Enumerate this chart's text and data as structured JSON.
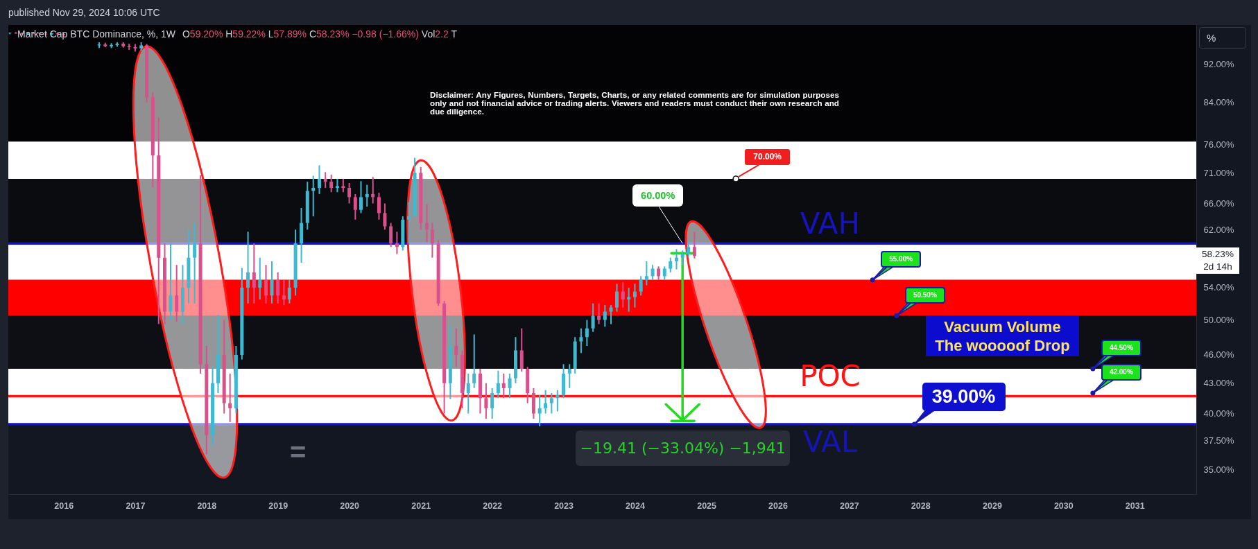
{
  "chart_data": {
    "type": "candlestick",
    "title": "Market Cap BTC Dominance, %, 1W",
    "subtitle": "O59.20% H59.22% L57.89% C58.23% −0.98 (−1.66%) Vol2.2 T",
    "x": [
      "2015-04",
      "2015-05",
      "2015-06",
      "2015-07",
      "2015-08",
      "2015-09",
      "2015-10",
      "2015-11",
      "2015-12",
      "2016-01",
      "2016-07",
      "2016-08",
      "2016-09",
      "2016-10",
      "2016-11",
      "2016-12",
      "2017-01",
      "2017-02",
      "2017-03",
      "2017-04",
      "2017-05",
      "2017-06",
      "2017-07",
      "2017-08",
      "2017-09",
      "2017-10",
      "2017-11",
      "2017-12",
      "2018-01",
      "2018-02",
      "2018-03",
      "2018-04",
      "2018-05",
      "2018-06",
      "2018-07",
      "2018-08",
      "2018-09",
      "2018-10",
      "2018-11",
      "2018-12",
      "2019-01",
      "2019-02",
      "2019-03",
      "2019-04",
      "2019-05",
      "2019-06",
      "2019-07",
      "2019-08",
      "2019-09",
      "2019-10",
      "2019-11",
      "2019-12",
      "2020-01",
      "2020-02",
      "2020-03",
      "2020-04",
      "2020-05",
      "2020-06",
      "2020-07",
      "2020-08",
      "2020-09",
      "2020-10",
      "2020-11",
      "2020-12",
      "2021-01",
      "2021-02",
      "2021-03",
      "2021-04",
      "2021-05",
      "2021-06",
      "2021-07",
      "2021-08",
      "2021-09",
      "2021-10",
      "2021-11",
      "2021-12",
      "2022-01",
      "2022-02",
      "2022-03",
      "2022-04",
      "2022-05",
      "2022-06",
      "2022-07",
      "2022-08",
      "2022-09",
      "2022-10",
      "2022-11",
      "2022-12",
      "2023-01",
      "2023-02",
      "2023-03",
      "2023-04",
      "2023-05",
      "2023-06",
      "2023-07",
      "2023-08",
      "2023-09",
      "2023-10",
      "2023-11",
      "2023-12",
      "2024-01",
      "2024-02",
      "2024-03",
      "2024-04",
      "2024-05",
      "2024-06",
      "2024-07",
      "2024-08",
      "2024-09",
      "2024-10",
      "2024-11"
    ],
    "ohlc": [
      [
        99,
        99.2,
        98.8,
        99.1
      ],
      [
        99.1,
        99.3,
        98.9,
        99
      ],
      [
        99,
        99.2,
        98.7,
        98.9
      ],
      [
        98.9,
        99.2,
        98.7,
        99.1
      ],
      [
        99.1,
        99.3,
        98.8,
        99
      ],
      [
        99,
        99.2,
        98.8,
        98.9
      ],
      [
        98.9,
        99.1,
        98.6,
        98.8
      ],
      [
        98.8,
        99.1,
        98.6,
        99
      ],
      [
        99,
        99.2,
        98.7,
        98.8
      ],
      [
        98.8,
        99,
        98.5,
        98.6
      ],
      [
        96.2,
        96.9,
        95.6,
        96.4
      ],
      [
        96.4,
        96.8,
        95.8,
        96
      ],
      [
        96,
        96.7,
        95.6,
        96.3
      ],
      [
        96.3,
        96.9,
        95.9,
        96.6
      ],
      [
        96.6,
        96.9,
        95.7,
        96
      ],
      [
        96,
        96.6,
        95.2,
        95.8
      ],
      [
        95.8,
        96.5,
        94.8,
        95.5
      ],
      [
        95.5,
        96.9,
        95,
        96.2
      ],
      [
        96.2,
        96.5,
        84,
        85
      ],
      [
        85,
        86,
        68.6,
        74
      ],
      [
        74,
        81,
        49.5,
        58
      ],
      [
        58,
        60,
        49.5,
        51
      ],
      [
        51,
        60,
        50,
        53
      ],
      [
        53,
        57,
        49.8,
        51
      ],
      [
        51,
        57,
        49.5,
        54
      ],
      [
        54,
        62,
        52,
        58
      ],
      [
        58,
        63,
        52,
        60
      ],
      [
        60,
        70.6,
        44,
        45
      ],
      [
        45,
        47,
        36.3,
        38
      ],
      [
        38,
        44.7,
        37,
        43
      ],
      [
        43,
        50.6,
        42,
        46
      ],
      [
        46,
        50,
        40,
        41
      ],
      [
        41,
        44,
        39.2,
        40.5
      ],
      [
        40.5,
        47,
        40,
        46
      ],
      [
        46,
        56.6,
        45.5,
        54
      ],
      [
        54,
        61.7,
        52,
        56
      ],
      [
        56,
        60,
        52,
        54
      ],
      [
        54,
        58,
        52.5,
        55
      ],
      [
        55,
        57,
        52,
        53
      ],
      [
        53,
        57.5,
        52,
        55
      ],
      [
        55,
        56,
        52,
        53
      ],
      [
        53,
        55,
        51.8,
        52.5
      ],
      [
        52.5,
        55,
        52,
        54
      ],
      [
        54,
        62,
        53,
        60
      ],
      [
        60,
        65.3,
        57.3,
        63
      ],
      [
        63,
        69.5,
        62,
        68
      ],
      [
        68,
        70.5,
        64,
        68.5
      ],
      [
        68.5,
        72.3,
        67.5,
        70
      ],
      [
        70,
        71.1,
        68.5,
        69.5
      ],
      [
        69.5,
        70.7,
        67.8,
        68.5
      ],
      [
        68.5,
        70,
        67.8,
        68.8
      ],
      [
        68.8,
        70,
        67.8,
        68.5
      ],
      [
        68.5,
        69.3,
        66,
        67
      ],
      [
        67,
        67.5,
        63.5,
        65
      ],
      [
        65,
        69.6,
        64.5,
        67
      ],
      [
        67,
        69,
        65.5,
        67.5
      ],
      [
        67.5,
        70.3,
        66,
        67
      ],
      [
        67,
        67.7,
        63.5,
        64.5
      ],
      [
        64.5,
        66,
        62,
        62.5
      ],
      [
        62.5,
        63,
        59.5,
        60
      ],
      [
        60,
        61.7,
        58.5,
        59.5
      ],
      [
        59.5,
        64,
        59,
        63.5
      ],
      [
        63.5,
        66.2,
        60,
        64
      ],
      [
        64,
        73.6,
        64,
        71
      ],
      [
        71,
        72,
        62,
        63
      ],
      [
        63,
        65.9,
        60.2,
        62
      ],
      [
        62,
        63,
        58,
        60
      ],
      [
        60,
        60.5,
        51.7,
        52
      ],
      [
        52,
        52.3,
        40,
        43
      ],
      [
        43,
        49.3,
        41.4,
        47
      ],
      [
        47,
        49,
        44.7,
        46
      ],
      [
        46,
        46.5,
        40.5,
        42
      ],
      [
        42,
        44,
        40,
        43
      ],
      [
        43,
        48.3,
        42.5,
        44
      ],
      [
        44,
        44.5,
        40,
        41.5
      ],
      [
        41.5,
        43,
        39.5,
        40.5
      ],
      [
        40.5,
        42.5,
        39.5,
        42
      ],
      [
        42,
        44.3,
        41.5,
        43
      ],
      [
        43,
        44,
        41.5,
        42.5
      ],
      [
        42.5,
        44,
        41.5,
        43.5
      ],
      [
        43.5,
        48,
        43,
        46.5
      ],
      [
        46.5,
        49,
        44.2,
        44.5
      ],
      [
        44.5,
        44.7,
        41,
        42
      ],
      [
        42,
        42.5,
        39.5,
        40
      ],
      [
        40,
        41.8,
        38.8,
        40.5
      ],
      [
        40.5,
        42.3,
        40,
        41
      ],
      [
        41,
        42,
        40,
        41.5
      ],
      [
        41.5,
        42.3,
        40.2,
        41.8
      ],
      [
        41.8,
        45,
        41.5,
        44
      ],
      [
        44,
        45,
        42.5,
        44.5
      ],
      [
        44.5,
        48,
        44,
        47.5
      ],
      [
        47.5,
        49,
        46.2,
        48
      ],
      [
        48,
        50,
        47,
        49
      ],
      [
        49,
        52,
        48.6,
        50.5
      ],
      [
        50.5,
        52,
        49.5,
        50
      ],
      [
        50,
        51.8,
        49.2,
        51
      ],
      [
        51,
        51.8,
        49.5,
        51.5
      ],
      [
        51.5,
        54.5,
        51,
        53.5
      ],
      [
        53.5,
        54.7,
        51.5,
        52.5
      ],
      [
        52.5,
        54,
        51,
        52.8
      ],
      [
        52.8,
        54.5,
        51.5,
        53.5
      ],
      [
        53.5,
        55.5,
        53,
        55
      ],
      [
        55,
        57.5,
        54.3,
        55.5
      ],
      [
        55.5,
        57,
        55,
        56.5
      ],
      [
        56.5,
        56.8,
        55,
        55.5
      ],
      [
        55.5,
        56.8,
        55,
        56.5
      ],
      [
        56.5,
        58,
        56,
        57.5
      ],
      [
        57.5,
        59.2,
        56.4,
        58
      ],
      [
        58,
        59,
        57,
        58.5
      ],
      [
        58.5,
        60.5,
        58,
        59.5
      ],
      [
        59.5,
        61.7,
        57.89,
        58.23
      ]
    ],
    "xlim": [
      "2015-03-24",
      "2031-11-12"
    ],
    "xticks": [
      "2016",
      "2017",
      "2018",
      "2019",
      "2020",
      "2021",
      "2022",
      "2023",
      "2024",
      "2025",
      "2026",
      "2027",
      "2028",
      "2029",
      "2030",
      "2031"
    ],
    "ylim": [
      33,
      101
    ],
    "yticks": [
      {
        "value": 35,
        "label": "35.00%"
      },
      {
        "value": 37.5,
        "label": "37.50%"
      },
      {
        "value": 40,
        "label": "40.00%"
      },
      {
        "value": 43,
        "label": "43.00%"
      },
      {
        "value": 46,
        "label": "46.00%"
      },
      {
        "value": 50,
        "label": "50.00%"
      },
      {
        "value": 54,
        "label": "54.00%"
      },
      {
        "value": 62,
        "label": "62.00%"
      },
      {
        "value": 66,
        "label": "66.00%"
      },
      {
        "value": 71,
        "label": "71.00%"
      },
      {
        "value": 76,
        "label": "76.00%"
      },
      {
        "value": 84,
        "label": "84.00%"
      },
      {
        "value": 92,
        "label": "92.00%"
      }
    ],
    "log": true,
    "bands": [
      {
        "axis": "y",
        "from": 76.5,
        "to": 101,
        "color": "#030305"
      },
      {
        "axis": "y",
        "from": 70,
        "to": 76.5,
        "color": "#ffffff"
      },
      {
        "axis": "y",
        "from": 60,
        "to": 70,
        "color": "#0b0c10"
      },
      {
        "axis": "y",
        "from": 55,
        "to": 60,
        "color": "#ffffff"
      },
      {
        "axis": "y",
        "from": 50.5,
        "to": 55,
        "color": "#ff0000"
      },
      {
        "axis": "y",
        "from": 44.5,
        "to": 50.5,
        "color": "#0d0f15"
      },
      {
        "axis": "y",
        "from": 39,
        "to": 44.5,
        "color": "#ffffff"
      }
    ],
    "ref_lines": [
      {
        "axis": "y",
        "value": 60,
        "label": "VAH",
        "color": "#1414b8"
      },
      {
        "axis": "y",
        "value": 41.7,
        "label": "POC",
        "color": "#ff1414"
      },
      {
        "axis": "y",
        "value": 39,
        "label": "VAL",
        "color": "#1414b8"
      }
    ],
    "annotations": [
      "published Nov 29, 2024 10:06 UTC",
      "Disclaimer: Any Figures, Numbers, Targets, Charts, or any related comments are for simulation purposes only and not financial advice or trading alerts. Viewers and readers must conduct their own research and due diligence.",
      {
        "text": "70.00%",
        "x": "2025-06",
        "y": 70
      },
      {
        "text": "60.00%",
        "x": "2024-09",
        "y": 60
      },
      {
        "text": "55.00%",
        "x": "2027-05",
        "y": 55
      },
      {
        "text": "50.50%",
        "x": "2027-09",
        "y": 50.5
      },
      {
        "text": "44.50%",
        "x": "2030-06",
        "y": 44.5
      },
      {
        "text": "42.00%",
        "x": "2030-06",
        "y": 42
      },
      {
        "text": "39.00%",
        "x": "2027-12",
        "y": 39
      },
      "Vacuum Volume\nThe wooooof Drop",
      {
        "text": "−19.41 (−33.04%) −1,941",
        "x": "2024-09",
        "y": 39.3
      },
      "=",
      "58.23%",
      "2d 14h",
      "%"
    ]
  }
}
